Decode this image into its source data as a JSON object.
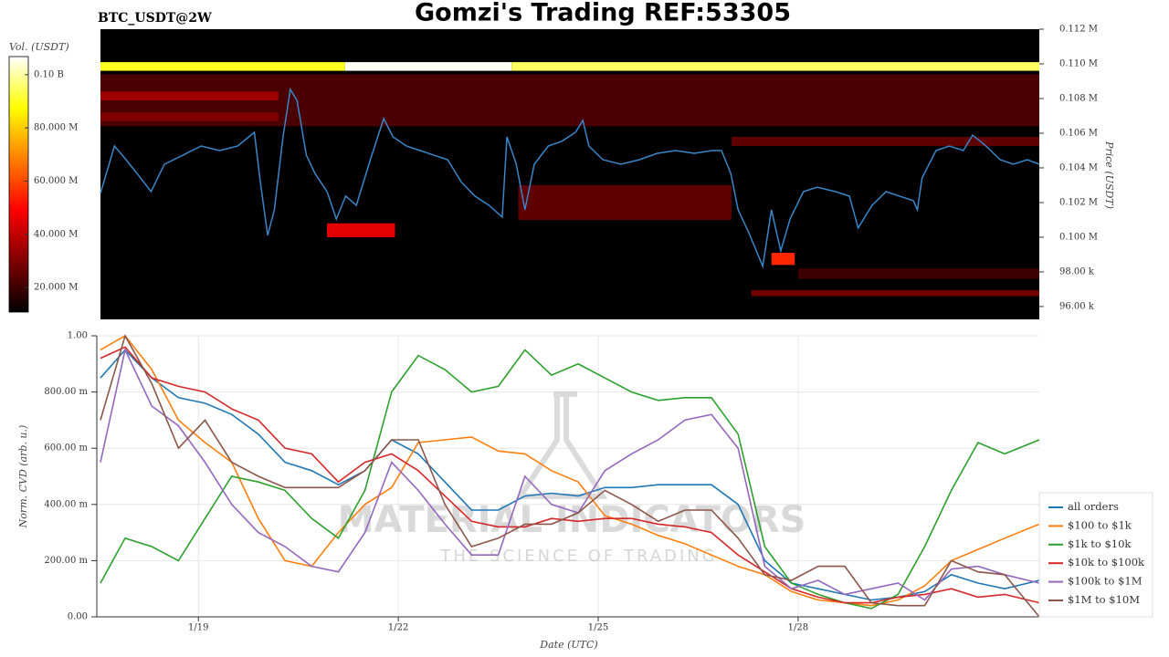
{
  "header": {
    "title": "Gomzi's Trading REF:53305"
  },
  "chart_data": [
    {
      "type": "heatmap",
      "title": "BTC_USDT@2W",
      "colorbar_label": "Vol. (USDT)",
      "y_label": "Price (USDT)",
      "colormap": "hot",
      "background": "#000000",
      "xlim": [
        17.53,
        31.62
      ],
      "ylim": [
        95260,
        112000
      ],
      "yticks": [
        {
          "value": 112000,
          "label": "0.112 M"
        },
        {
          "value": 110000,
          "label": "0.110 M"
        },
        {
          "value": 108000,
          "label": "0.108 M"
        },
        {
          "value": 106000,
          "label": "0.106 M"
        },
        {
          "value": 104000,
          "label": "0.104 M"
        },
        {
          "value": 102000,
          "label": "0.102 M"
        },
        {
          "value": 100000,
          "label": "0.100 M"
        },
        {
          "value": 98000,
          "label": "98.00 k"
        },
        {
          "value": 96000,
          "label": "96.00 k"
        }
      ],
      "vlim": [
        10800000,
        106800000
      ],
      "vticks": [
        {
          "value": 100000000,
          "label": "0.10 B"
        },
        {
          "value": 80000000,
          "label": "80.000 M"
        },
        {
          "value": 60000000,
          "label": "60.000 M"
        },
        {
          "value": 40000000,
          "label": "40.000 M"
        },
        {
          "value": 20000000,
          "label": "20.000 M"
        }
      ],
      "cells": [
        {
          "start": 17.53,
          "end": 31.62,
          "low": 106400,
          "high": 109400,
          "volume": 22000000
        },
        {
          "start": 17.53,
          "end": 20.2,
          "low": 107900,
          "high": 108400,
          "volume": 35000000
        },
        {
          "start": 17.53,
          "end": 20.2,
          "low": 106700,
          "high": 107200,
          "volume": 30000000
        },
        {
          "start": 27.0,
          "end": 31.62,
          "low": 105260,
          "high": 105790,
          "volume": 25000000
        },
        {
          "start": 23.8,
          "end": 27.0,
          "low": 101000,
          "high": 103000,
          "volume": 25000000
        },
        {
          "start": 20.93,
          "end": 21.95,
          "low": 100000,
          "high": 100800,
          "volume": 45000000
        },
        {
          "start": 28.0,
          "end": 31.62,
          "low": 97600,
          "high": 98200,
          "volume": 20000000
        },
        {
          "start": 27.3,
          "end": 31.62,
          "low": 96600,
          "high": 96950,
          "volume": 28000000
        },
        {
          "start": 27.6,
          "end": 27.95,
          "low": 98400,
          "high": 99100,
          "volume": 55000000
        },
        {
          "start": 17.53,
          "end": 21.2,
          "low": 109600,
          "high": 110100,
          "volume": 90000000
        },
        {
          "start": 21.2,
          "end": 23.7,
          "low": 109600,
          "high": 110100,
          "volume": 106000000
        },
        {
          "start": 23.7,
          "end": 31.62,
          "low": 109600,
          "high": 110100,
          "volume": 95000000
        }
      ],
      "series": [
        {
          "color": "#3a86c8",
          "x": [
            17.53,
            17.64,
            17.74,
            17.88,
            18.08,
            18.29,
            18.49,
            18.77,
            19.04,
            19.32,
            19.59,
            19.84,
            19.93,
            20.04,
            20.14,
            20.27,
            20.38,
            20.48,
            20.62,
            20.75,
            20.93,
            21.07,
            21.21,
            21.37,
            21.58,
            21.78,
            21.92,
            22.12,
            22.33,
            22.53,
            22.74,
            22.95,
            23.15,
            23.36,
            23.56,
            23.63,
            23.77,
            23.9,
            24.04,
            24.25,
            24.45,
            24.66,
            24.77,
            24.86,
            25.07,
            25.34,
            25.62,
            25.89,
            26.16,
            26.44,
            26.71,
            26.85,
            26.99,
            27.1,
            27.26,
            27.47,
            27.6,
            27.74,
            27.88,
            28.08,
            28.29,
            28.56,
            28.77,
            28.9,
            29.11,
            29.32,
            29.52,
            29.73,
            29.79,
            29.86,
            30.07,
            30.27,
            30.48,
            30.62,
            30.82,
            31.03,
            31.23,
            31.44,
            31.62
          ],
          "values": [
            102530,
            103950,
            105260,
            104630,
            103680,
            102630,
            104210,
            104740,
            105260,
            105000,
            105260,
            106050,
            103160,
            100110,
            101580,
            105790,
            108530,
            107890,
            104740,
            103680,
            102630,
            101050,
            102370,
            101840,
            104470,
            106840,
            105790,
            105260,
            105000,
            104740,
            104470,
            103160,
            102370,
            101840,
            101160,
            105790,
            104210,
            101580,
            104210,
            105260,
            105530,
            106050,
            106740,
            105260,
            104470,
            104210,
            104470,
            104840,
            105000,
            104840,
            105000,
            105000,
            103680,
            101580,
            100260,
            98320,
            101580,
            99210,
            101050,
            102630,
            102890,
            102630,
            102370,
            100530,
            101840,
            102630,
            102370,
            102110,
            101580,
            103420,
            105000,
            105260,
            105000,
            105890,
            105260,
            104470,
            104210,
            104470,
            104210
          ]
        }
      ]
    },
    {
      "type": "line",
      "y_label": "Norm. CVD (arb. u.)",
      "x_label": "Date (UTC)",
      "grid": true,
      "legend": "right",
      "watermark": [
        "MATERIAL INDICATORS",
        "THE SCIENCE OF TRADING"
      ],
      "xlim": [
        17.53,
        31.62
      ],
      "xticks": [
        {
          "value": 19,
          "label": "1/19"
        },
        {
          "value": 22,
          "label": "1/22"
        },
        {
          "value": 25,
          "label": "1/25"
        },
        {
          "value": 28,
          "label": "1/28"
        }
      ],
      "ylim": [
        0,
        1
      ],
      "yticks": [
        {
          "value": 1,
          "label": "1.00"
        },
        {
          "value": 0.8,
          "label": "800.00 m"
        },
        {
          "value": 0.6,
          "label": "600.00 m"
        },
        {
          "value": 0.4,
          "label": "400.00 m"
        },
        {
          "value": 0.2,
          "label": "200.00 m"
        },
        {
          "value": 0,
          "label": "0.00"
        }
      ],
      "x": [
        17.53,
        17.9,
        18.3,
        18.7,
        19.1,
        19.5,
        19.9,
        20.3,
        20.7,
        21.1,
        21.5,
        21.9,
        22.3,
        22.7,
        23.1,
        23.5,
        23.9,
        24.3,
        24.7,
        25.1,
        25.5,
        25.9,
        26.3,
        26.7,
        27.1,
        27.5,
        27.9,
        28.3,
        28.7,
        29.1,
        29.5,
        29.9,
        30.3,
        30.7,
        31.1,
        31.62
      ],
      "series": [
        {
          "name": "all orders",
          "color": "#1f77b4",
          "values": [
            0.85,
            0.95,
            0.85,
            0.78,
            0.76,
            0.72,
            0.65,
            0.55,
            0.52,
            0.47,
            0.52,
            0.63,
            0.58,
            0.48,
            0.38,
            0.38,
            0.43,
            0.44,
            0.43,
            0.46,
            0.46,
            0.47,
            0.47,
            0.47,
            0.4,
            0.2,
            0.12,
            0.1,
            0.08,
            0.06,
            0.07,
            0.09,
            0.15,
            0.12,
            0.1,
            0.13
          ]
        },
        {
          "name": "$100 to $1k",
          "color": "#ff7f0e",
          "values": [
            0.95,
            1.0,
            0.88,
            0.7,
            0.62,
            0.55,
            0.35,
            0.2,
            0.18,
            0.3,
            0.4,
            0.46,
            0.62,
            0.63,
            0.64,
            0.59,
            0.58,
            0.52,
            0.48,
            0.36,
            0.33,
            0.29,
            0.26,
            0.22,
            0.18,
            0.15,
            0.09,
            0.06,
            0.05,
            0.04,
            0.06,
            0.11,
            0.2,
            0.24,
            0.28,
            0.33
          ]
        },
        {
          "name": "$1k to $10k",
          "color": "#2ca02c",
          "values": [
            0.12,
            0.28,
            0.25,
            0.2,
            0.35,
            0.5,
            0.48,
            0.45,
            0.35,
            0.28,
            0.45,
            0.8,
            0.93,
            0.88,
            0.8,
            0.82,
            0.95,
            0.86,
            0.9,
            0.85,
            0.8,
            0.77,
            0.78,
            0.78,
            0.65,
            0.25,
            0.12,
            0.08,
            0.05,
            0.03,
            0.08,
            0.25,
            0.45,
            0.62,
            0.58,
            0.63
          ]
        },
        {
          "name": "$10k to $100k",
          "color": "#d62728",
          "values": [
            0.92,
            0.96,
            0.85,
            0.82,
            0.8,
            0.74,
            0.7,
            0.6,
            0.58,
            0.48,
            0.55,
            0.58,
            0.52,
            0.43,
            0.34,
            0.32,
            0.32,
            0.35,
            0.34,
            0.35,
            0.35,
            0.33,
            0.32,
            0.3,
            0.22,
            0.16,
            0.1,
            0.07,
            0.05,
            0.05,
            0.07,
            0.08,
            0.1,
            0.07,
            0.08,
            0.05
          ]
        },
        {
          "name": "$100k to $1M",
          "color": "#9467bd",
          "values": [
            0.55,
            0.95,
            0.75,
            0.68,
            0.55,
            0.4,
            0.3,
            0.25,
            0.18,
            0.16,
            0.3,
            0.55,
            0.45,
            0.33,
            0.22,
            0.22,
            0.5,
            0.4,
            0.37,
            0.52,
            0.58,
            0.63,
            0.7,
            0.72,
            0.6,
            0.18,
            0.1,
            0.13,
            0.08,
            0.1,
            0.12,
            0.06,
            0.17,
            0.18,
            0.15,
            0.12
          ]
        },
        {
          "name": "$1M to $10M",
          "color": "#8c564b",
          "values": [
            0.7,
            1.0,
            0.83,
            0.6,
            0.7,
            0.55,
            0.5,
            0.46,
            0.46,
            0.46,
            0.52,
            0.63,
            0.63,
            0.4,
            0.25,
            0.28,
            0.33,
            0.33,
            0.37,
            0.45,
            0.4,
            0.34,
            0.38,
            0.38,
            0.28,
            0.15,
            0.13,
            0.18,
            0.18,
            0.05,
            0.04,
            0.04,
            0.2,
            0.16,
            0.15,
            0.0
          ]
        }
      ]
    }
  ]
}
